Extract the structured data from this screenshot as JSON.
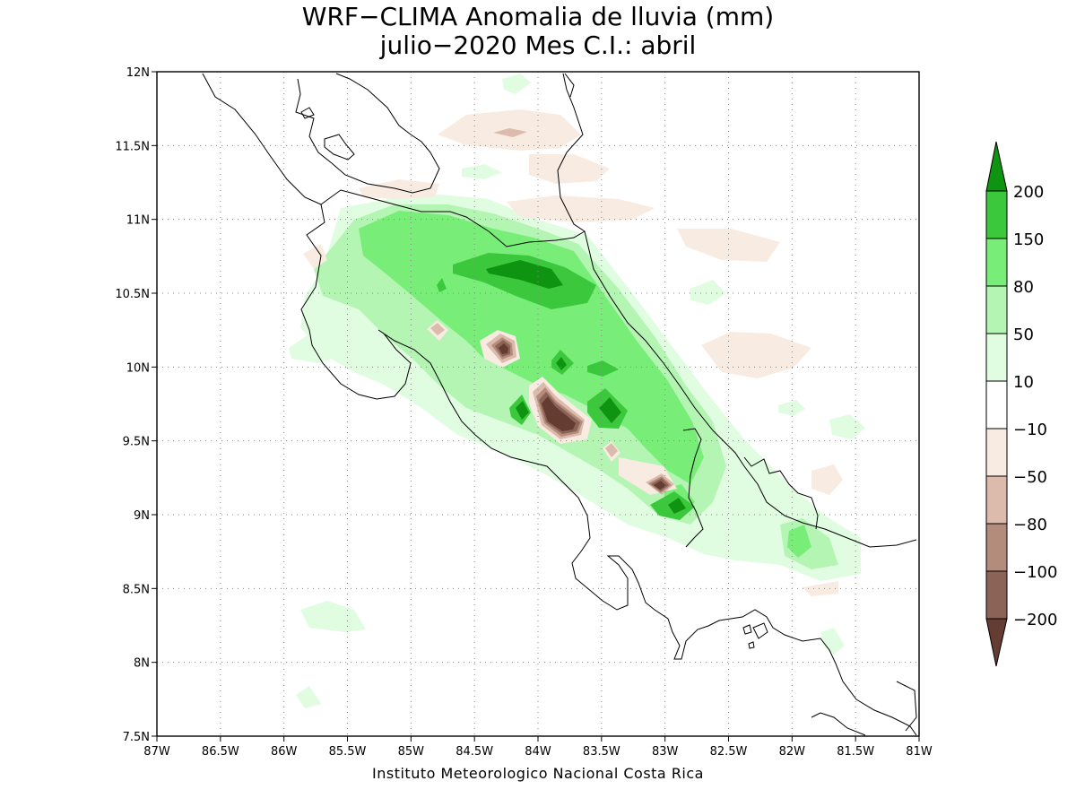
{
  "title_line1": "WRF−CLIMA Anomalia de lluvia (mm)",
  "title_line2": "julio−2020 Mes C.I.: abril",
  "footer": "Instituto Meteorologico Nacional Costa Rica",
  "map": {
    "lon_range": [
      -87,
      -81
    ],
    "lat_range": [
      7.5,
      12
    ],
    "grid": "dotted",
    "lon_ticks": [
      "87W",
      "86.5W",
      "86W",
      "85.5W",
      "85W",
      "84.5W",
      "84W",
      "83.5W",
      "83W",
      "82.5W",
      "82W",
      "81.5W",
      "81W"
    ],
    "lat_ticks": [
      "12N",
      "11.5N",
      "11N",
      "10.5N",
      "10N",
      "9.5N",
      "9N",
      "8.5N",
      "8N",
      "7.5N"
    ]
  },
  "legend": {
    "labels": [
      "200",
      "150",
      "80",
      "50",
      "10",
      "−10",
      "−50",
      "−80",
      "−100",
      "−200"
    ],
    "colors": {
      "g200": "#0f9412",
      "g150": "#3cc83c",
      "g80": "#78ee78",
      "g50": "#b4f5b4",
      "g10": "#e1fde1",
      "zero": "#ffffff",
      "b10": "#f8ebe1",
      "b50": "#dcbbac",
      "b80": "#b48c7c",
      "b100": "#8c6357",
      "b200": "#643c32"
    }
  }
}
